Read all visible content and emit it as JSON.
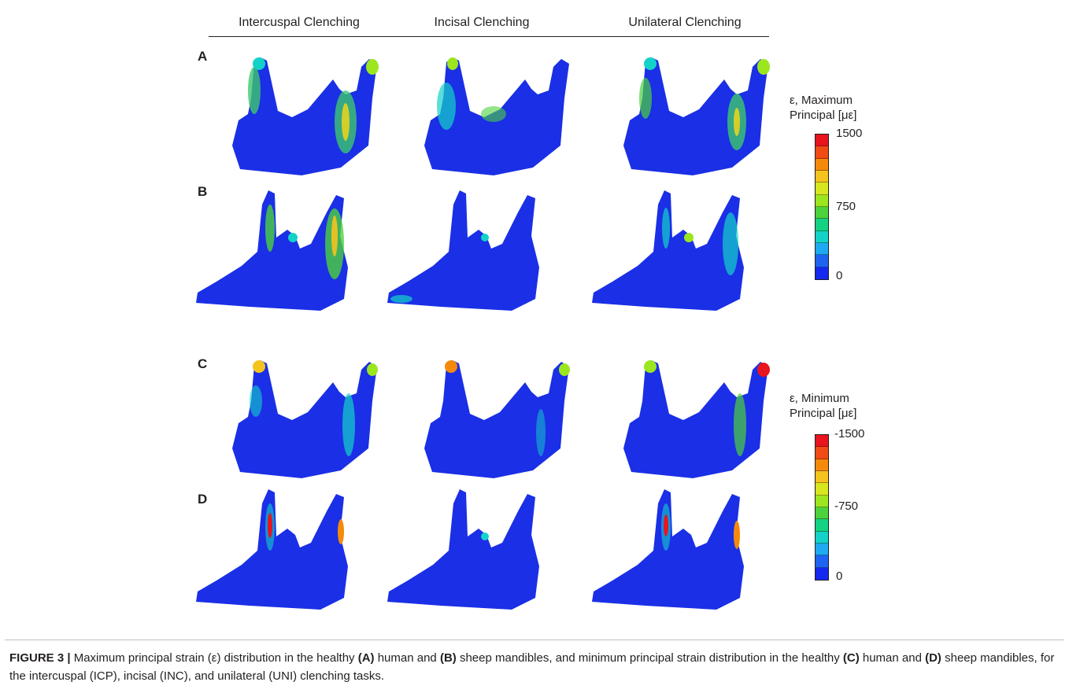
{
  "columns": [
    "Intercuspal Clenching",
    "Incisal Clenching",
    "Unilateral Clenching"
  ],
  "panels": [
    "A",
    "B",
    "C",
    "D"
  ],
  "colorbar_max": {
    "title_line1": "ε, Maximum",
    "title_line2": "Principal [με]",
    "ticks": [
      "1500",
      "750",
      "0"
    ]
  },
  "colorbar_min": {
    "title_line1": "ε, Minimum",
    "title_line2": "Principal [με]",
    "ticks": [
      "-1500",
      "-750",
      "0"
    ]
  },
  "colorbar_colors": [
    "#e8141e",
    "#f04b14",
    "#f58a0a",
    "#f5c31e",
    "#d7e61e",
    "#9be61e",
    "#4bd23c",
    "#14d282",
    "#14d2c8",
    "#1eaaf0",
    "#1e64f0",
    "#1428f0"
  ],
  "mandible_color": "#1a2fe6",
  "caption": {
    "label": "FIGURE 3 |",
    "t1": " Maximum principal strain (ε) distribution in the healthy ",
    "b1": "(A)",
    "t2": " human and ",
    "b2": "(B)",
    "t3": " sheep mandibles, and minimum principal strain distribution in the healthy ",
    "b3": "(C)",
    "t4": " human and ",
    "b4": "(D)",
    "t5": " sheep mandibles, for the intercuspal (ICP), incisal (INC), and unilateral (UNI) clenching tasks."
  }
}
